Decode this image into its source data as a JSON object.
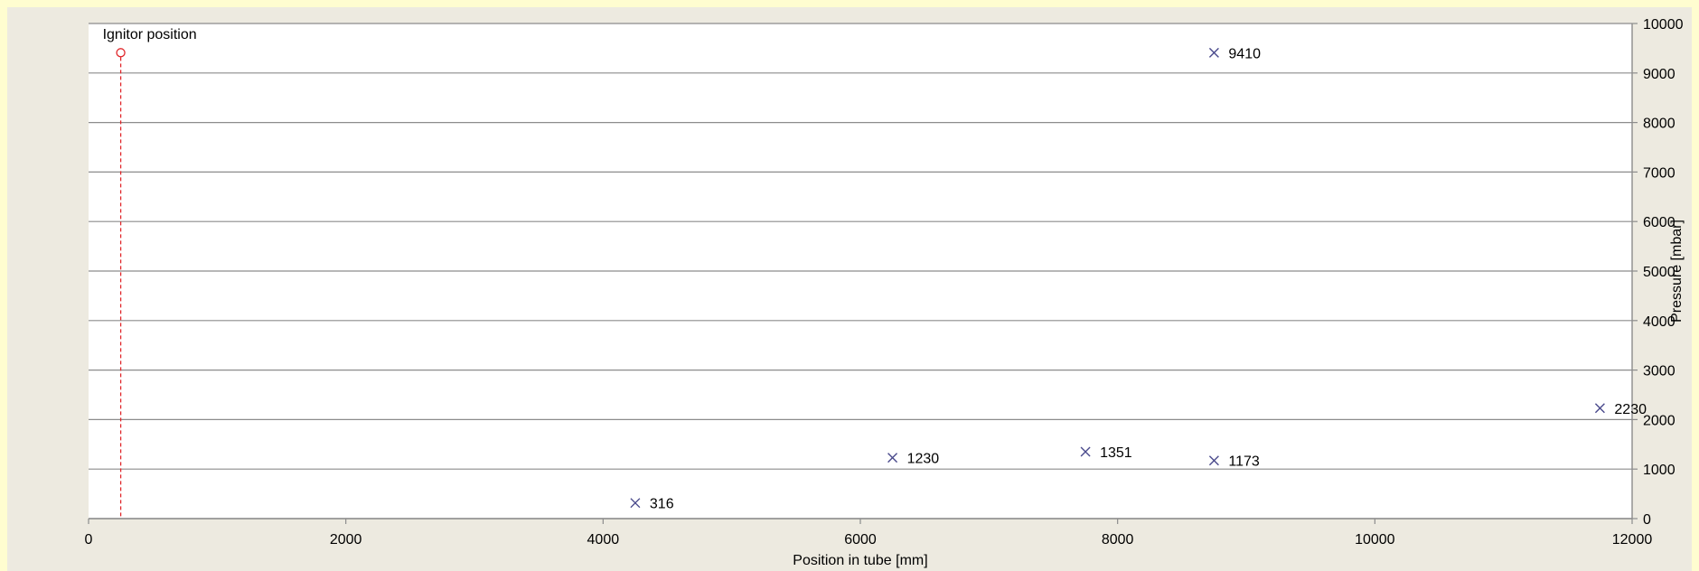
{
  "colors": {
    "page_border": "#fffdd0",
    "frame_background": "#edeae0",
    "plot_background": "#ffffff",
    "gridline": "#8c8c8c",
    "marker": "#4a4a8c",
    "ignitor": "#e0262a"
  },
  "chart_data": {
    "type": "scatter",
    "title": "",
    "xlabel": "Position in tube [mm]",
    "ylabel": "Pressure [mbar]",
    "xlim": [
      0,
      12000
    ],
    "ylim": [
      0,
      10000
    ],
    "x_ticks": [
      0,
      2000,
      4000,
      6000,
      8000,
      10000,
      12000
    ],
    "y_ticks": [
      0,
      1000,
      2000,
      3000,
      4000,
      5000,
      6000,
      7000,
      8000,
      9000,
      10000
    ],
    "y_axis_side": "right",
    "grid": "horizontal",
    "legend": "none",
    "marker_symbol": "x",
    "points": [
      {
        "x": 4250,
        "y": 316,
        "label": "316"
      },
      {
        "x": 6250,
        "y": 1230,
        "label": "1230"
      },
      {
        "x": 7750,
        "y": 1351,
        "label": "1351"
      },
      {
        "x": 8750,
        "y": 1173,
        "label": "1173"
      },
      {
        "x": 8750,
        "y": 9410,
        "label": "9410"
      },
      {
        "x": 11750,
        "y": 2230,
        "label": "2230"
      }
    ],
    "ignitor": {
      "label": "Ignitor position",
      "x": 250,
      "y": 9410,
      "marker_symbol": "circle",
      "line_style": "dashed-vertical"
    }
  }
}
